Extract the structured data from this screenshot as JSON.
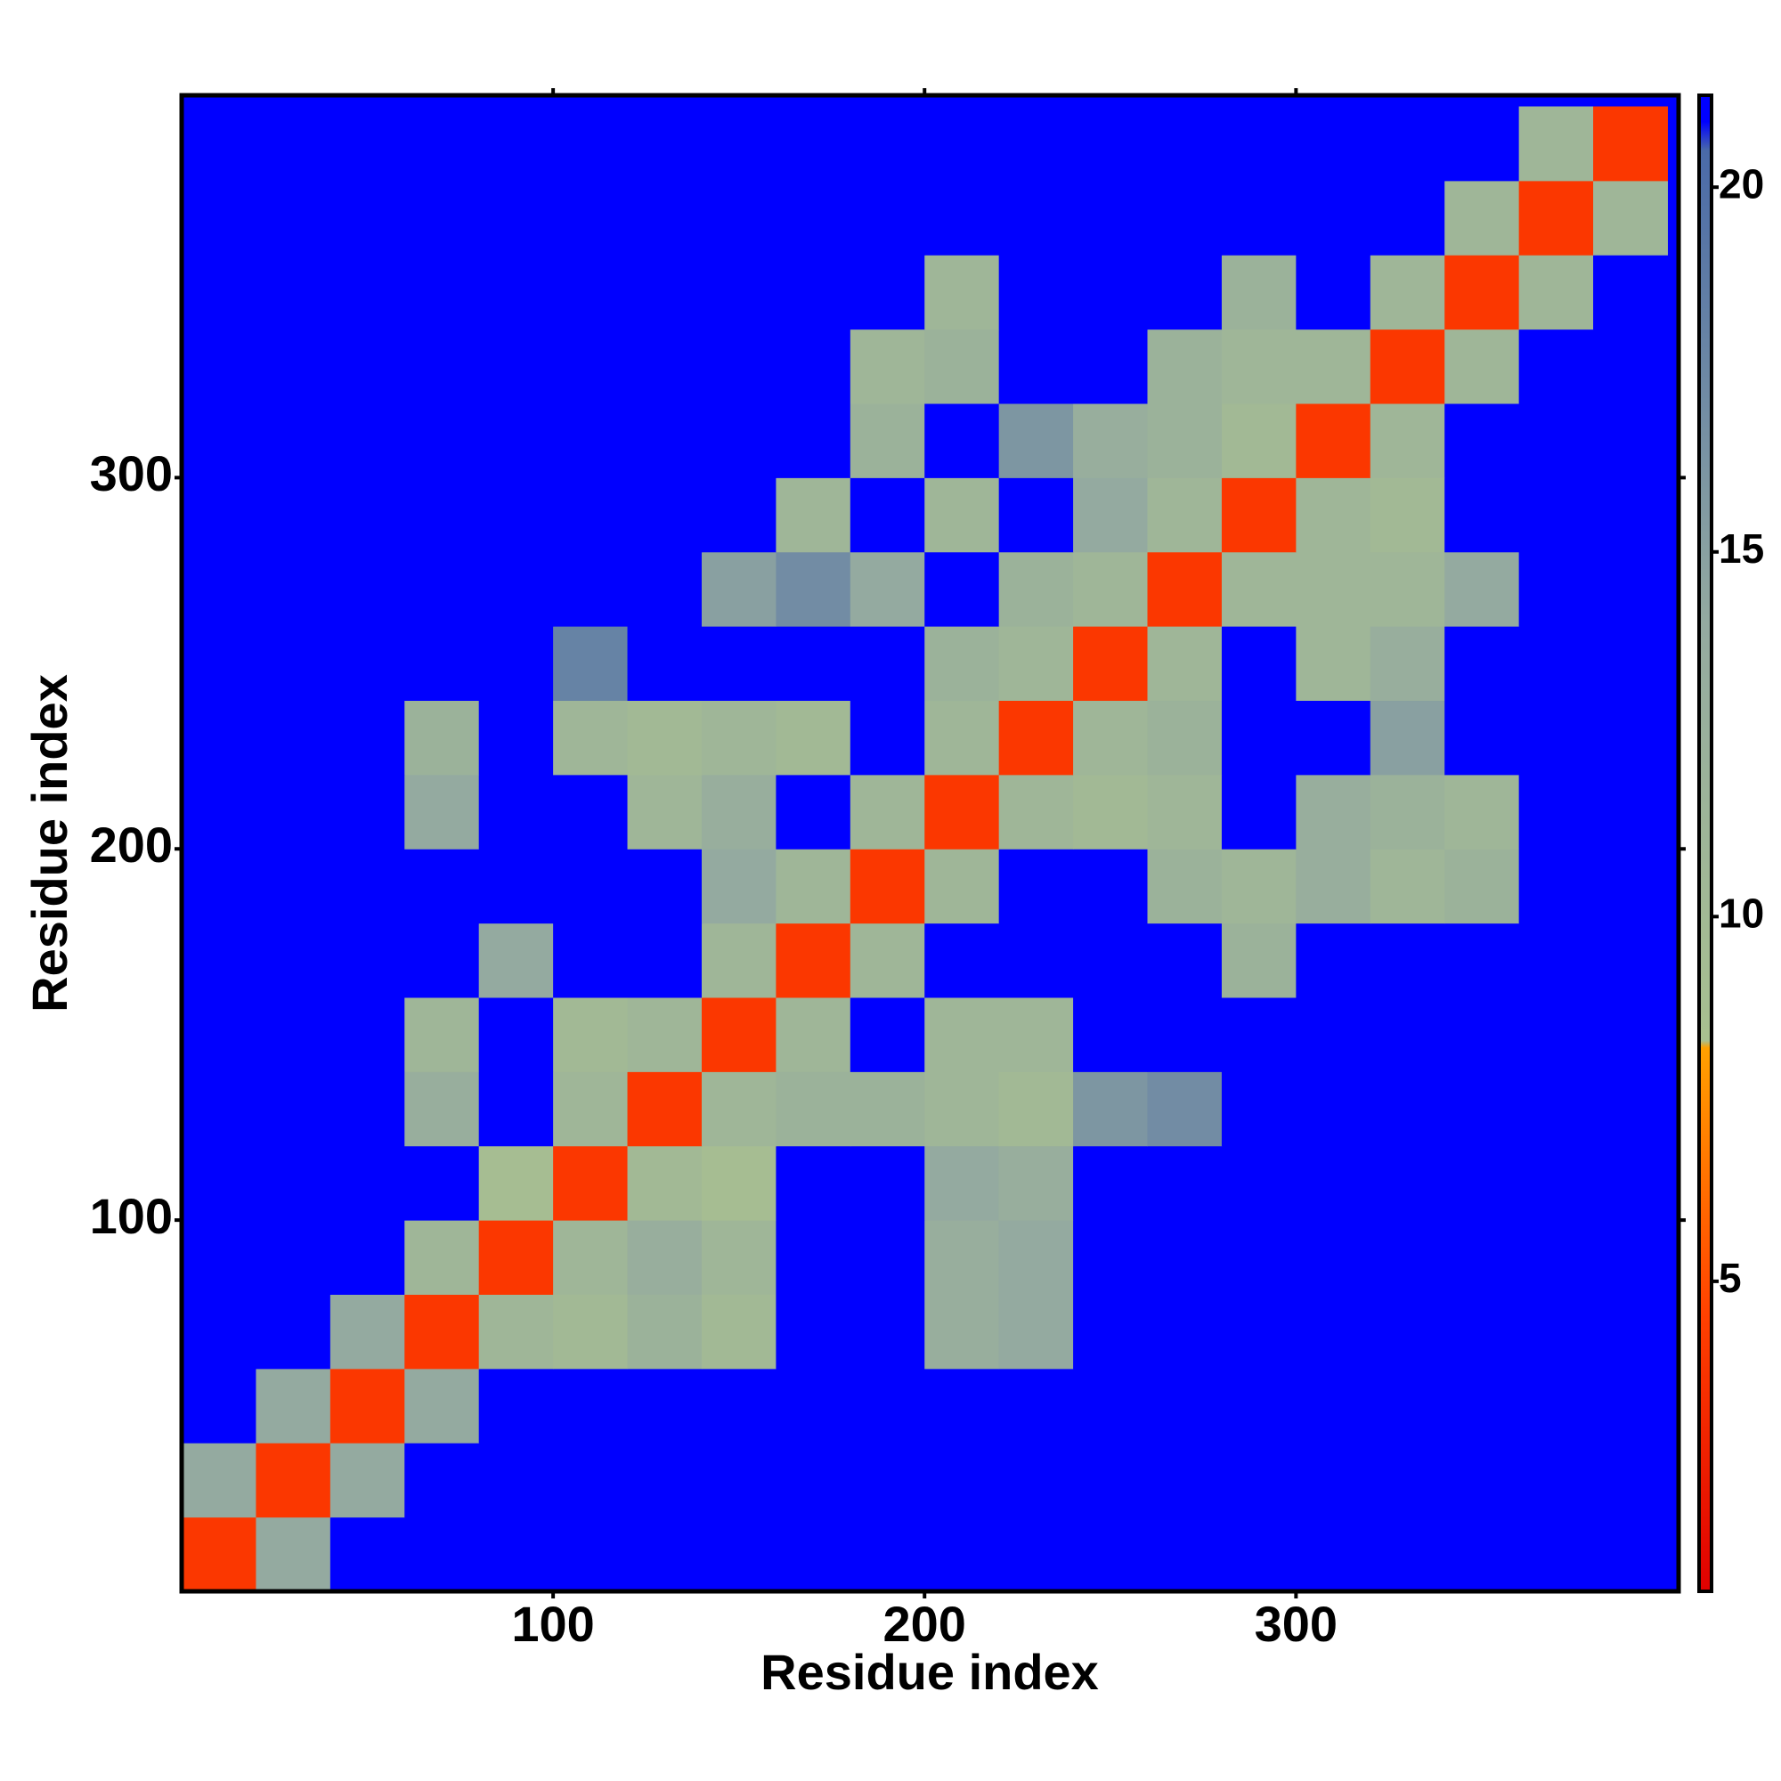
{
  "chart_data": {
    "type": "heatmap",
    "xlabel": "Residue index",
    "ylabel": "Residue index",
    "x": [
      0,
      20,
      40,
      60,
      80,
      100,
      120,
      140,
      160,
      180,
      200,
      220,
      240,
      260,
      280,
      300,
      320,
      340,
      360,
      380,
      400
    ],
    "y": [
      0,
      20,
      40,
      60,
      80,
      100,
      120,
      140,
      160,
      180,
      200,
      220,
      240,
      260,
      280,
      300,
      320,
      340,
      360,
      380,
      400
    ],
    "z": [
      [
        4,
        14,
        21,
        21,
        21,
        21,
        21,
        21,
        21,
        21,
        21,
        21,
        21,
        21,
        21,
        21,
        21,
        21,
        21,
        21
      ],
      [
        14,
        4,
        14,
        21,
        21,
        21,
        21,
        21,
        21,
        21,
        21,
        21,
        21,
        21,
        21,
        21,
        21,
        21,
        21,
        21
      ],
      [
        21,
        14,
        4,
        14,
        21,
        21,
        21,
        21,
        21,
        21,
        21,
        21,
        21,
        21,
        21,
        21,
        21,
        21,
        21,
        21
      ],
      [
        21,
        21,
        14,
        4,
        11,
        10,
        12,
        10,
        21,
        21,
        13,
        14,
        21,
        21,
        21,
        21,
        21,
        21,
        21,
        21
      ],
      [
        21,
        21,
        21,
        11,
        4,
        11,
        13,
        11,
        21,
        21,
        13,
        14,
        21,
        21,
        21,
        21,
        21,
        21,
        21,
        21
      ],
      [
        21,
        21,
        21,
        21,
        9,
        4,
        10,
        9,
        21,
        21,
        14,
        13,
        21,
        21,
        21,
        21,
        21,
        21,
        21,
        21
      ],
      [
        21,
        21,
        21,
        13,
        21,
        11,
        4,
        11,
        12,
        12,
        11,
        10,
        16,
        17,
        21,
        21,
        21,
        21,
        21,
        21
      ],
      [
        21,
        21,
        21,
        11,
        21,
        10,
        11,
        4,
        11,
        21,
        11,
        11,
        21,
        21,
        21,
        21,
        21,
        21,
        21,
        21
      ],
      [
        21,
        21,
        21,
        21,
        14,
        21,
        21,
        11,
        4,
        11,
        21,
        21,
        21,
        21,
        12,
        21,
        21,
        21,
        21,
        21
      ],
      [
        21,
        21,
        21,
        21,
        21,
        21,
        21,
        14,
        11,
        4,
        11,
        21,
        21,
        12,
        11,
        13,
        11,
        12,
        21,
        21
      ],
      [
        21,
        21,
        21,
        14,
        21,
        21,
        11,
        13,
        21,
        11,
        4,
        11,
        10,
        11,
        21,
        13,
        12,
        11,
        21,
        21
      ],
      [
        21,
        21,
        21,
        12,
        21,
        11,
        10,
        11,
        10,
        21,
        11,
        4,
        11,
        12,
        21,
        21,
        15,
        21,
        21,
        21
      ],
      [
        21,
        21,
        21,
        21,
        21,
        18,
        21,
        21,
        21,
        21,
        12,
        11,
        4,
        11,
        21,
        11,
        13,
        21,
        21,
        21
      ],
      [
        21,
        21,
        21,
        21,
        21,
        21,
        21,
        15,
        17,
        14,
        21,
        12,
        11,
        4,
        11,
        11,
        11,
        14,
        21,
        21
      ],
      [
        21,
        21,
        21,
        21,
        21,
        21,
        21,
        21,
        11,
        21,
        11,
        21,
        14,
        11,
        4,
        11,
        10,
        21,
        21,
        21
      ],
      [
        21,
        21,
        21,
        21,
        21,
        21,
        21,
        21,
        21,
        12,
        21,
        16,
        13,
        12,
        10,
        4,
        11,
        21,
        21,
        21
      ],
      [
        21,
        21,
        21,
        21,
        21,
        21,
        21,
        21,
        21,
        11,
        12,
        21,
        21,
        12,
        11,
        11,
        4,
        11,
        21,
        21
      ],
      [
        21,
        21,
        21,
        21,
        21,
        21,
        21,
        21,
        21,
        21,
        11,
        21,
        21,
        21,
        12,
        21,
        11,
        4,
        11,
        21
      ],
      [
        21,
        21,
        21,
        21,
        21,
        21,
        21,
        21,
        21,
        21,
        21,
        21,
        21,
        21,
        21,
        21,
        21,
        11,
        4,
        11
      ],
      [
        21,
        21,
        21,
        21,
        21,
        21,
        21,
        21,
        21,
        21,
        21,
        21,
        21,
        21,
        21,
        21,
        21,
        21,
        11,
        4
      ]
    ],
    "xlim": [
      0,
      403
    ],
    "ylim": [
      0,
      403
    ],
    "xticks": [
      100,
      200,
      300
    ],
    "yticks": [
      100,
      200,
      300
    ],
    "colorbar": {
      "lim": [
        0.75,
        21.26
      ],
      "ticks": [
        5,
        10,
        15,
        20
      ]
    },
    "colorscale": [
      {
        "value": 0.75,
        "color": "#e00000"
      },
      {
        "value": 4.5,
        "color": "#ff4000"
      },
      {
        "value": 8.2,
        "color": "#ffa000"
      },
      {
        "value": 8.3,
        "color": "#a8c090"
      },
      {
        "value": 14,
        "color": "#94aaa0"
      },
      {
        "value": 20.5,
        "color": "#4a6aa8"
      },
      {
        "value": 20.9,
        "color": "#0000ff"
      },
      {
        "value": 21.26,
        "color": "#0000ff"
      }
    ]
  }
}
